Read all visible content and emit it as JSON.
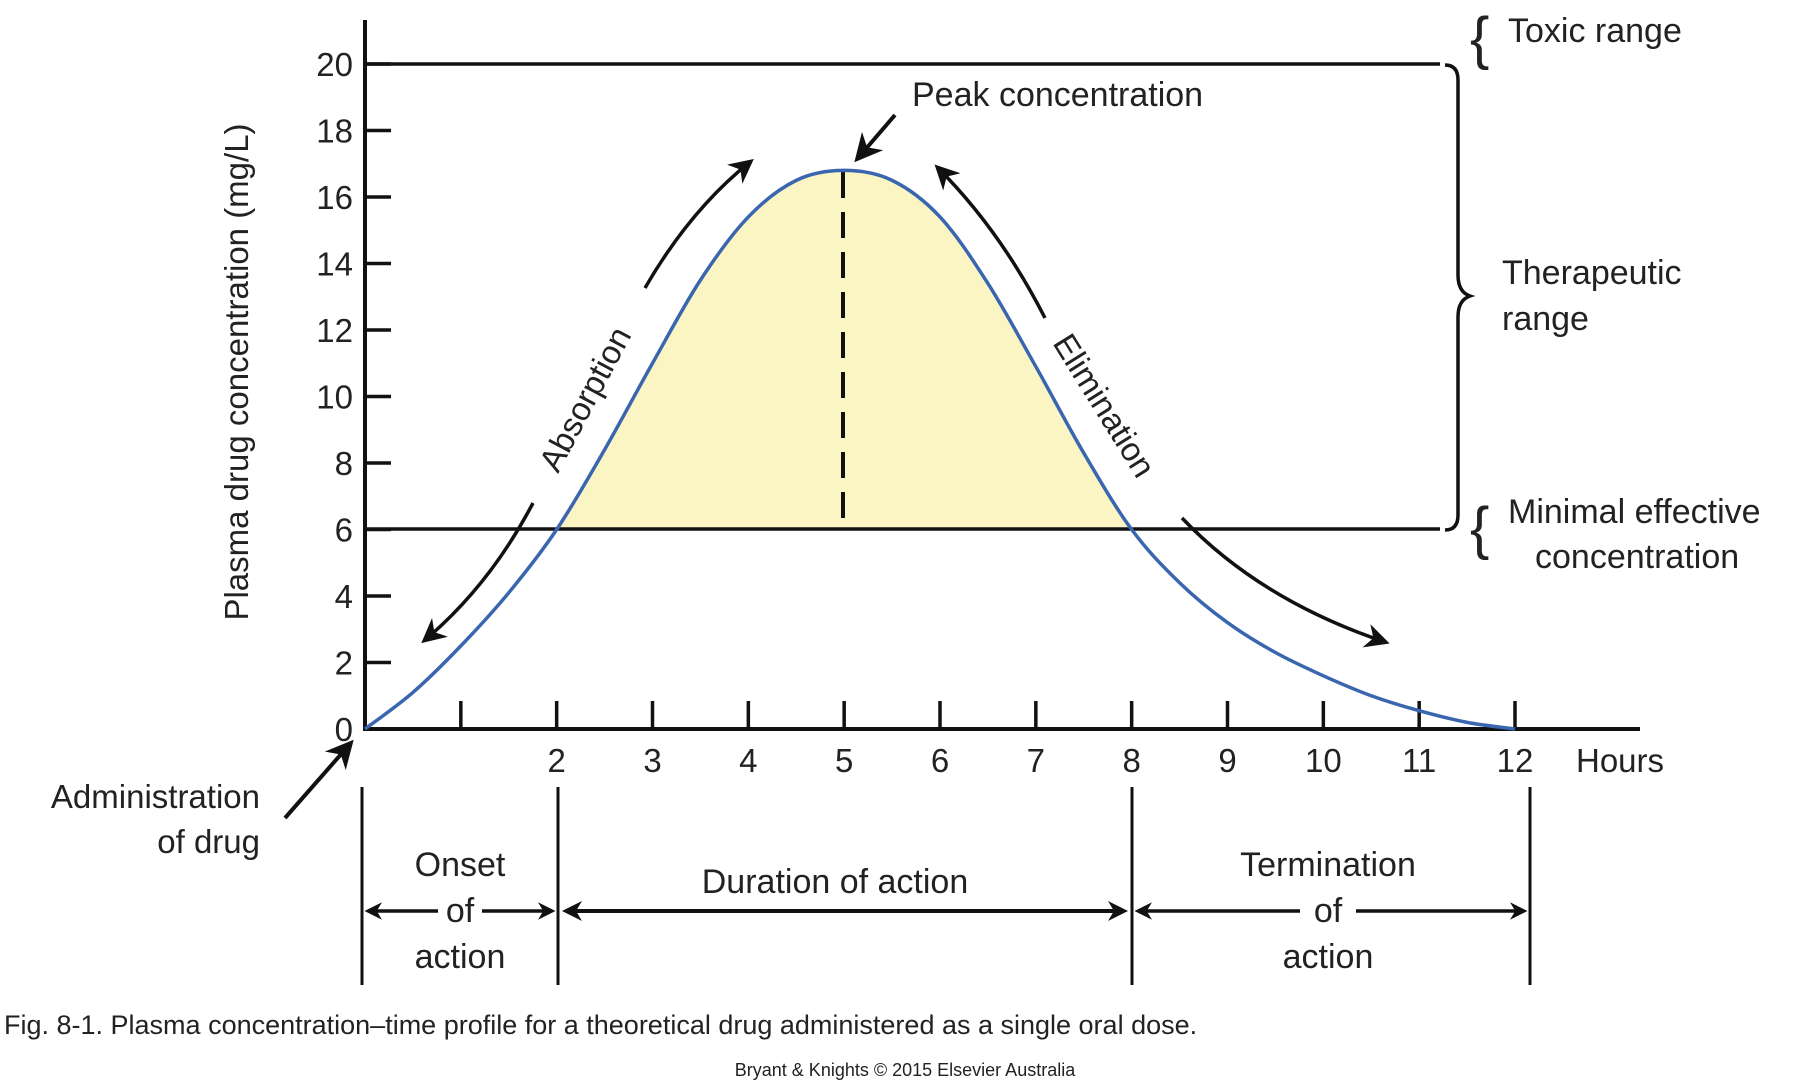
{
  "chart_data": {
    "type": "line",
    "title": "Plasma concentration–time profile",
    "xlabel": "Hours",
    "ylabel": "Plasma drug concentration (mg/L)",
    "xlim": [
      0,
      12
    ],
    "ylim": [
      0,
      20
    ],
    "x_tick_labels": [
      "2",
      "3",
      "4",
      "5",
      "6",
      "7",
      "8",
      "9",
      "10",
      "11",
      "12"
    ],
    "x_ticks": [
      1,
      2,
      3,
      4,
      5,
      6,
      7,
      8,
      9,
      10,
      11,
      12
    ],
    "y_ticks": [
      0,
      2,
      4,
      6,
      8,
      10,
      12,
      14,
      16,
      18,
      20
    ],
    "grid": false,
    "series": [
      {
        "name": "Plasma drug concentration",
        "color": "#3a66b0",
        "x": [
          0,
          0.5,
          1,
          1.5,
          2,
          2.5,
          3,
          3.5,
          4,
          4.5,
          5,
          5.5,
          6,
          6.5,
          7,
          7.5,
          8,
          8.5,
          9,
          9.5,
          10,
          10.5,
          11,
          11.5,
          12
        ],
        "y": [
          0,
          1.1,
          2.5,
          4.1,
          6.0,
          8.4,
          11.0,
          13.5,
          15.4,
          16.5,
          16.8,
          16.5,
          15.4,
          13.4,
          10.9,
          8.3,
          6.0,
          4.4,
          3.2,
          2.3,
          1.6,
          1.0,
          0.55,
          0.2,
          0
        ]
      }
    ],
    "reference_lines": [
      {
        "name": "Toxic threshold",
        "y": 20
      },
      {
        "name": "Minimal effective concentration",
        "y": 6
      }
    ],
    "shaded_region": {
      "description": "Area under curve above MEC",
      "from_x": 2,
      "to_x": 8,
      "above_y": 6,
      "color": "#fbf5c4"
    },
    "peak": {
      "x": 5,
      "y": 16.8
    },
    "annotations": {
      "peak_concentration": "Peak concentration",
      "absorption": "Absorption",
      "elimination": "Elimination",
      "administration": [
        "Administration",
        "of drug"
      ],
      "toxic_range": "Toxic range",
      "therapeutic_range": [
        "Therapeutic",
        "range"
      ],
      "minimal_effective": [
        "Minimal effective",
        "concentration"
      ]
    },
    "phases": [
      {
        "label": [
          "Onset",
          "of",
          "action"
        ],
        "from_x": 0,
        "to_x": 2
      },
      {
        "label": [
          "Duration of action"
        ],
        "from_x": 2,
        "to_x": 8
      },
      {
        "label": [
          "Termination",
          "of",
          "action"
        ],
        "from_x": 8,
        "to_x": 12
      }
    ]
  },
  "labels": {
    "y_axis": "Plasma drug concentration (mg/L)",
    "x_unit": "Hours",
    "y_ticks": [
      "0",
      "2",
      "4",
      "6",
      "8",
      "10",
      "12",
      "14",
      "16",
      "18",
      "20"
    ],
    "x_ticks": [
      "2",
      "3",
      "4",
      "5",
      "6",
      "7",
      "8",
      "9",
      "10",
      "11",
      "12"
    ],
    "peak": "Peak concentration",
    "absorption": "Absorption",
    "elimination": "Elimination",
    "admin_line1": "Administration",
    "admin_line2": "of drug",
    "toxic": "Toxic range",
    "therapeutic_line1": "Therapeutic",
    "therapeutic_line2": "range",
    "mec_line1": "Minimal effective",
    "mec_line2": "concentration",
    "onset_1": "Onset",
    "onset_2": "of",
    "onset_3": "action",
    "duration": "Duration of action",
    "termination_1": "Termination",
    "termination_2": "of",
    "termination_3": "action"
  },
  "caption": "Fig. 8-1. Plasma concentration–time profile for a theoretical drug administered as a single oral dose.",
  "credit": "Bryant & Knights © 2015 Elsevier Australia",
  "colors": {
    "curve": "#3a66b0",
    "fill": "#fbf5c4",
    "ink": "#111111"
  }
}
